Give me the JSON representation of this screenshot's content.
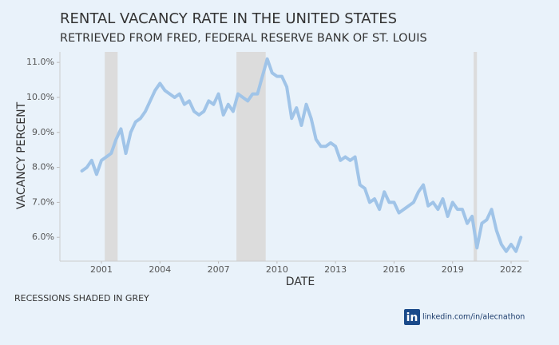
{
  "chart_data": {
    "type": "line",
    "title": "RENTAL VACANCY RATE IN THE UNITED STATES",
    "subtitle": "RETRIEVED FROM FRED, FEDERAL RESERVE BANK OF ST. LOUIS",
    "xlabel": "DATE",
    "ylabel": "VACANCY PERCENT",
    "annotation": "RECESSIONS SHADED IN GREY",
    "credit_logo": "in",
    "credit": "linkedin.com/in/alecnathon",
    "xlim": [
      1998.87,
      2022.9
    ],
    "ylim": [
      5.32,
      11.3
    ],
    "xticks": [
      2001,
      2004,
      2007,
      2010,
      2013,
      2016,
      2019,
      2022
    ],
    "yticks": [
      {
        "value": 6,
        "label": "6.0%"
      },
      {
        "value": 7,
        "label": "7.0%"
      },
      {
        "value": 8,
        "label": "8.0%"
      },
      {
        "value": 9,
        "label": "9.0%"
      },
      {
        "value": 10,
        "label": "10.0%"
      },
      {
        "value": 11,
        "label": "11.0%"
      }
    ],
    "recessions": [
      [
        2001.17,
        2001.83
      ],
      [
        2007.92,
        2009.42
      ],
      [
        2020.08,
        2020.25
      ]
    ],
    "recession_color": "#dcdcdc",
    "x": [
      2000,
      2000.25,
      2000.5,
      2000.75,
      2001,
      2001.25,
      2001.5,
      2001.75,
      2002,
      2002.25,
      2002.5,
      2002.75,
      2003,
      2003.25,
      2003.5,
      2003.75,
      2004,
      2004.25,
      2004.5,
      2004.75,
      2005,
      2005.25,
      2005.5,
      2005.75,
      2006,
      2006.25,
      2006.5,
      2006.75,
      2007,
      2007.25,
      2007.5,
      2007.75,
      2008,
      2008.25,
      2008.5,
      2008.75,
      2009,
      2009.25,
      2009.5,
      2009.75,
      2010,
      2010.25,
      2010.5,
      2010.75,
      2011,
      2011.25,
      2011.5,
      2011.75,
      2012,
      2012.25,
      2012.5,
      2012.75,
      2013,
      2013.25,
      2013.5,
      2013.75,
      2014,
      2014.25,
      2014.5,
      2014.75,
      2015,
      2015.25,
      2015.5,
      2015.75,
      2016,
      2016.25,
      2016.5,
      2016.75,
      2017,
      2017.25,
      2017.5,
      2017.75,
      2018,
      2018.25,
      2018.5,
      2018.75,
      2019,
      2019.25,
      2019.5,
      2019.75,
      2020,
      2020.25,
      2020.5,
      2020.75,
      2021,
      2021.25,
      2021.5,
      2021.75,
      2022,
      2022.25,
      2022.5
    ],
    "series": [
      {
        "name": "Rental vacancy rate",
        "color": "#a0c4e8",
        "values": [
          7.9,
          8.0,
          8.2,
          7.8,
          8.2,
          8.3,
          8.4,
          8.8,
          9.1,
          8.4,
          9.0,
          9.3,
          9.4,
          9.6,
          9.9,
          10.2,
          10.4,
          10.2,
          10.1,
          10.0,
          10.1,
          9.8,
          9.9,
          9.6,
          9.5,
          9.6,
          9.9,
          9.8,
          10.1,
          9.5,
          9.8,
          9.6,
          10.1,
          10.0,
          9.9,
          10.1,
          10.1,
          10.6,
          11.1,
          10.7,
          10.6,
          10.6,
          10.3,
          9.4,
          9.7,
          9.2,
          9.8,
          9.4,
          8.8,
          8.6,
          8.6,
          8.7,
          8.6,
          8.2,
          8.3,
          8.2,
          8.3,
          7.5,
          7.4,
          7.0,
          7.1,
          6.8,
          7.3,
          7.0,
          7.0,
          6.7,
          6.8,
          6.9,
          7.0,
          7.3,
          7.5,
          6.9,
          7.0,
          6.8,
          7.1,
          6.6,
          7.0,
          6.8,
          6.8,
          6.4,
          6.6,
          5.7,
          6.4,
          6.5,
          6.8,
          6.2,
          5.8,
          5.6,
          5.8,
          5.6,
          6.0
        ]
      }
    ]
  }
}
